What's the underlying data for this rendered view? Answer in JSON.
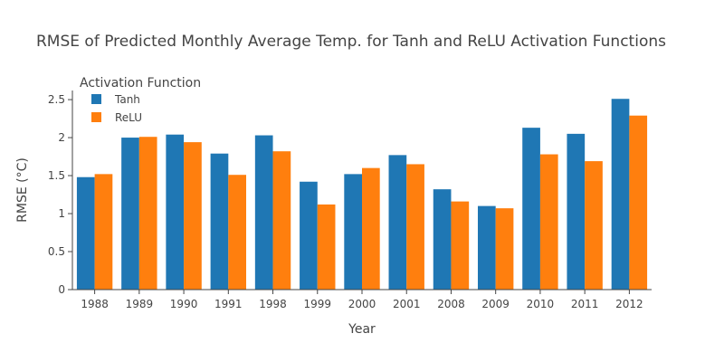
{
  "chart_data": {
    "type": "bar",
    "title": "RMSE of Predicted Monthly Average Temp. for Tanh and ReLU Activation Functions",
    "xlabel": "Year",
    "ylabel": "RMSE (°C)",
    "categories": [
      "1988",
      "1989",
      "1990",
      "1991",
      "1998",
      "1999",
      "2000",
      "2001",
      "2008",
      "2009",
      "2010",
      "2011",
      "2012"
    ],
    "series": [
      {
        "name": "Tanh",
        "color": "#1f77b4",
        "values": [
          1.48,
          2.0,
          2.04,
          1.79,
          2.03,
          1.42,
          1.52,
          1.77,
          1.32,
          1.1,
          2.13,
          2.05,
          2.51
        ]
      },
      {
        "name": "ReLU",
        "color": "#ff7f0e",
        "values": [
          1.52,
          2.01,
          1.94,
          1.51,
          1.82,
          1.12,
          1.6,
          1.65,
          1.16,
          1.07,
          1.78,
          1.69,
          2.29
        ]
      }
    ],
    "ylim": [
      0,
      2.62
    ],
    "yticks": [
      0,
      0.5,
      1,
      1.5,
      2,
      2.5
    ],
    "ytick_labels": [
      "0",
      "0.5",
      "1",
      "1.5",
      "2",
      "2.5"
    ],
    "legend": {
      "title": "Activation Function",
      "position": "top-left"
    },
    "grid": false
  }
}
